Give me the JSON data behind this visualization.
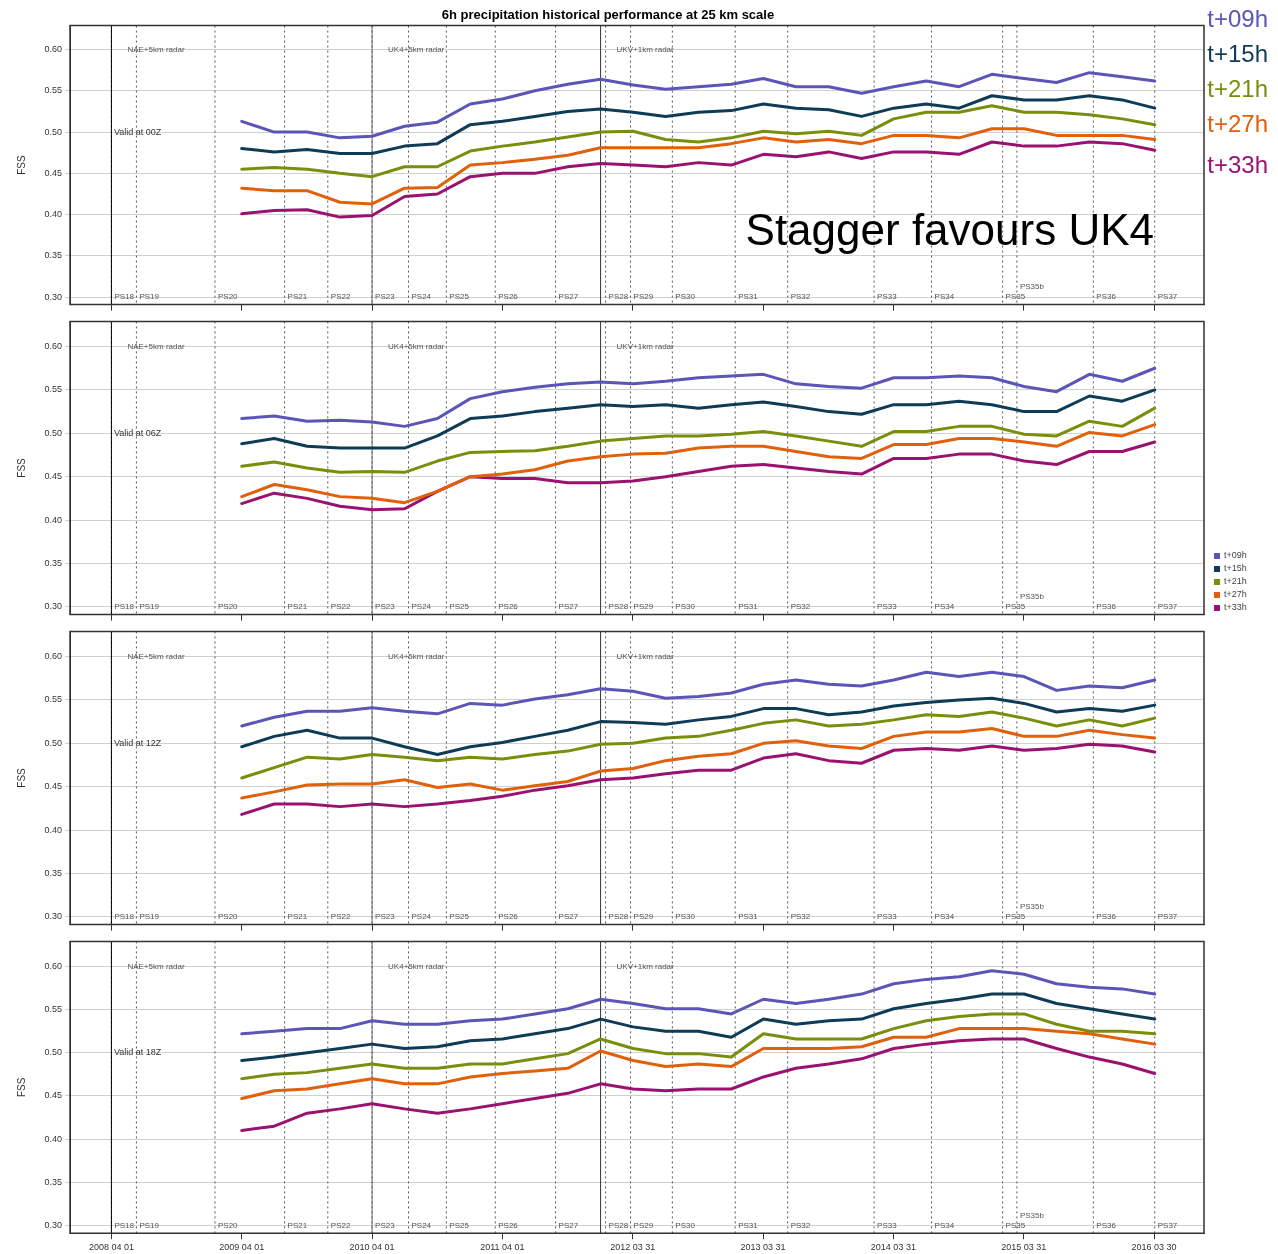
{
  "chart_data": [
    {
      "type": "line",
      "title": "6h precipitation historical performance at 25 km scale",
      "ylabel": "FSS",
      "grid": "y",
      "legend": "top right",
      "tick_labels": "y",
      "marker": "none",
      "line_style": "solid",
      "x": [
        "2009-04",
        "2009-07",
        "2009-10",
        "2010-01",
        "2010-04",
        "2010-07",
        "2010-10",
        "2011-01",
        "2011-04",
        "2011-07",
        "2011-10",
        "2012-01",
        "2012-04",
        "2012-07",
        "2012-10",
        "2013-01",
        "2013-04",
        "2013-07",
        "2013-10",
        "2014-01",
        "2014-04",
        "2014-07",
        "2014-10",
        "2015-01",
        "2015-04",
        "2015-07",
        "2015-10",
        "2016-01",
        "2016-04"
      ],
      "xlim": [
        "2007-12-07",
        "2016-08-17"
      ],
      "xticks": [
        {
          "value": "2008-04-01",
          "label": null
        },
        {
          "value": "2009-04-01",
          "label": null
        },
        {
          "value": "2010-04-01",
          "label": null
        },
        {
          "value": "2011-04-01",
          "label": null
        },
        {
          "value": "2012-03-31",
          "label": null
        },
        {
          "value": "2013-03-31",
          "label": null
        },
        {
          "value": "2014-03-31",
          "label": null
        },
        {
          "value": "2015-03-31",
          "label": null
        },
        {
          "value": "2016-03-30",
          "label": null
        }
      ],
      "ylim": [
        0.291,
        0.629
      ],
      "yticks": [
        {
          "value": 0.3,
          "label": "0.30"
        },
        {
          "value": 0.35,
          "label": "0.35"
        },
        {
          "value": 0.4,
          "label": "0.40"
        },
        {
          "value": 0.45,
          "label": "0.45"
        },
        {
          "value": 0.5,
          "label": "0.50"
        },
        {
          "value": 0.55,
          "label": "0.55"
        },
        {
          "value": 0.6,
          "label": "0.60"
        }
      ],
      "series": [
        {
          "name": "t+09h",
          "color": "#5b55b8",
          "values": [
            0.513,
            0.5,
            0.5,
            0.493,
            0.495,
            0.507,
            0.512,
            0.534,
            0.54,
            0.55,
            0.558,
            0.564,
            0.557,
            0.552,
            0.555,
            0.558,
            0.565,
            0.555,
            0.555,
            0.547,
            0.555,
            0.562,
            0.555,
            0.57,
            0.565,
            0.56,
            0.572,
            0.567,
            0.562
          ]
        },
        {
          "name": "t+15h",
          "color": "#0e3b55",
          "values": [
            0.48,
            0.476,
            0.479,
            0.474,
            0.474,
            0.483,
            0.486,
            0.509,
            0.513,
            0.519,
            0.525,
            0.528,
            0.524,
            0.519,
            0.524,
            0.526,
            0.534,
            0.529,
            0.527,
            0.519,
            0.529,
            0.534,
            0.529,
            0.544,
            0.539,
            0.539,
            0.544,
            0.539,
            0.529
          ]
        },
        {
          "name": "t+21h",
          "color": "#7b8d0c",
          "values": [
            0.455,
            0.457,
            0.455,
            0.45,
            0.446,
            0.458,
            0.458,
            0.477,
            0.483,
            0.488,
            0.494,
            0.5,
            0.501,
            0.491,
            0.488,
            0.493,
            0.501,
            0.498,
            0.501,
            0.496,
            0.516,
            0.524,
            0.524,
            0.532,
            0.524,
            0.524,
            0.521,
            0.516,
            0.509
          ]
        },
        {
          "name": "t+27h",
          "color": "#e0600c",
          "values": [
            0.432,
            0.429,
            0.429,
            0.415,
            0.413,
            0.432,
            0.433,
            0.46,
            0.463,
            0.467,
            0.472,
            0.481,
            0.481,
            0.481,
            0.481,
            0.486,
            0.493,
            0.488,
            0.491,
            0.486,
            0.496,
            0.496,
            0.493,
            0.504,
            0.504,
            0.496,
            0.496,
            0.496,
            0.491
          ]
        },
        {
          "name": "t+33h",
          "color": "#9a1270",
          "values": [
            0.401,
            0.405,
            0.406,
            0.397,
            0.399,
            0.422,
            0.425,
            0.446,
            0.45,
            0.45,
            0.458,
            0.462,
            0.46,
            0.458,
            0.463,
            0.46,
            0.473,
            0.47,
            0.476,
            0.468,
            0.476,
            0.476,
            0.473,
            0.488,
            0.483,
            0.483,
            0.488,
            0.486,
            0.478
          ]
        }
      ],
      "ref_lines": [
        {
          "axis": "x",
          "value": "2008-04-01",
          "label": "NAE+5km radar",
          "line_style": "solid",
          "color": "#000000"
        },
        {
          "axis": "x",
          "value": "2008-04-01",
          "label": "PS18",
          "line_style": "dotted",
          "color": "#555555"
        },
        {
          "axis": "x",
          "value": "2008-06-10",
          "label": "PS19",
          "line_style": "dotted",
          "color": "#555555"
        },
        {
          "axis": "x",
          "value": "2009-01-16",
          "label": "PS20",
          "line_style": "dotted",
          "color": "#555555"
        },
        {
          "axis": "x",
          "value": "2009-07-30",
          "label": "PS21",
          "line_style": "dotted",
          "color": "#555555"
        },
        {
          "axis": "x",
          "value": "2009-11-28",
          "label": "PS22",
          "line_style": "dotted",
          "color": "#555555"
        },
        {
          "axis": "x",
          "value": "2010-04-01",
          "label": "UK4+5km radar",
          "line_style": "solid",
          "color": "#666666"
        },
        {
          "axis": "x",
          "value": "2010-04-01",
          "label": "PS23",
          "line_style": "dotted",
          "color": "#555555"
        },
        {
          "axis": "x",
          "value": "2010-07-12",
          "label": "PS24",
          "line_style": "dotted",
          "color": "#555555"
        },
        {
          "axis": "x",
          "value": "2010-10-26",
          "label": "PS25",
          "line_style": "dotted",
          "color": "#555555"
        },
        {
          "axis": "x",
          "value": "2011-03-12",
          "label": "PS26",
          "line_style": "dotted",
          "color": "#555555"
        },
        {
          "axis": "x",
          "value": "2011-08-28",
          "label": "PS27",
          "line_style": "dotted",
          "color": "#555555"
        },
        {
          "axis": "x",
          "value": "2012-01-01",
          "label": "UKV+1km radar",
          "line_style": "solid",
          "color": "#333333"
        },
        {
          "axis": "x",
          "value": "2012-01-15",
          "label": "PS28",
          "line_style": "dotted",
          "color": "#555555"
        },
        {
          "axis": "x",
          "value": "2012-03-25",
          "label": "PS29",
          "line_style": "dotted",
          "color": "#555555"
        },
        {
          "axis": "x",
          "value": "2012-07-20",
          "label": "PS30",
          "line_style": "dotted",
          "color": "#555555"
        },
        {
          "axis": "x",
          "value": "2013-01-12",
          "label": "PS31",
          "line_style": "dotted",
          "color": "#555555"
        },
        {
          "axis": "x",
          "value": "2013-06-08",
          "label": "PS32",
          "line_style": "dotted",
          "color": "#555555"
        },
        {
          "axis": "x",
          "value": "2014-02-05",
          "label": "PS33",
          "line_style": "dotted",
          "color": "#555555"
        },
        {
          "axis": "x",
          "value": "2014-07-16",
          "label": "PS34",
          "line_style": "dotted",
          "color": "#555555"
        },
        {
          "axis": "x",
          "value": "2015-01-31",
          "label": "PS35",
          "line_style": "dotted",
          "color": "#555555"
        },
        {
          "axis": "x",
          "value": "2015-03-12",
          "label": "PS35b",
          "line_style": "dotted",
          "color": "#555555"
        },
        {
          "axis": "x",
          "value": "2015-10-12",
          "label": "PS36",
          "line_style": "dotted",
          "color": "#555555"
        },
        {
          "axis": "x",
          "value": "2016-04-01",
          "label": "PS37",
          "line_style": "dotted",
          "color": "#555555"
        }
      ],
      "annotations": [
        {
          "text": "Valid at 00Z",
          "x": "2008-04-08",
          "y": 0.5
        },
        "Stagger favours UK4"
      ]
    },
    {
      "type": "line",
      "ylabel": "FSS",
      "grid": "y",
      "legend": "bottom right",
      "tick_labels": "y",
      "marker": "none",
      "line_style": "solid",
      "x": [
        "2009-04",
        "2009-07",
        "2009-10",
        "2010-01",
        "2010-04",
        "2010-07",
        "2010-10",
        "2011-01",
        "2011-04",
        "2011-07",
        "2011-10",
        "2012-01",
        "2012-04",
        "2012-07",
        "2012-10",
        "2013-01",
        "2013-04",
        "2013-07",
        "2013-10",
        "2014-01",
        "2014-04",
        "2014-07",
        "2014-10",
        "2015-01",
        "2015-04",
        "2015-07",
        "2015-10",
        "2016-01",
        "2016-04"
      ],
      "xlim": [
        "2007-12-07",
        "2016-08-17"
      ],
      "xticks": [
        {
          "value": "2008-04-01",
          "label": null
        },
        {
          "value": "2009-04-01",
          "label": null
        },
        {
          "value": "2010-04-01",
          "label": null
        },
        {
          "value": "2011-04-01",
          "label": null
        },
        {
          "value": "2012-03-31",
          "label": null
        },
        {
          "value": "2013-03-31",
          "label": null
        },
        {
          "value": "2014-03-31",
          "label": null
        },
        {
          "value": "2015-03-31",
          "label": null
        },
        {
          "value": "2016-03-30",
          "label": null
        }
      ],
      "ylim": [
        0.291,
        0.629
      ],
      "yticks": [
        {
          "value": 0.3,
          "label": "0.30"
        },
        {
          "value": 0.35,
          "label": "0.35"
        },
        {
          "value": 0.4,
          "label": "0.40"
        },
        {
          "value": 0.45,
          "label": "0.45"
        },
        {
          "value": 0.5,
          "label": "0.50"
        },
        {
          "value": 0.55,
          "label": "0.55"
        },
        {
          "value": 0.6,
          "label": "0.60"
        }
      ],
      "series": [
        {
          "name": "t+09h",
          "color": "#5b55b8",
          "values": [
            0.517,
            0.52,
            0.514,
            0.515,
            0.513,
            0.508,
            0.517,
            0.54,
            0.548,
            0.553,
            0.557,
            0.559,
            0.557,
            0.56,
            0.564,
            0.566,
            0.568,
            0.557,
            0.554,
            0.552,
            0.564,
            0.564,
            0.566,
            0.564,
            0.554,
            0.548,
            0.568,
            0.56,
            0.575
          ]
        },
        {
          "name": "t+15h",
          "color": "#0e3b55",
          "values": [
            0.488,
            0.494,
            0.485,
            0.483,
            0.483,
            0.483,
            0.497,
            0.517,
            0.52,
            0.525,
            0.529,
            0.533,
            0.531,
            0.533,
            0.529,
            0.533,
            0.536,
            0.531,
            0.525,
            0.522,
            0.533,
            0.533,
            0.537,
            0.533,
            0.525,
            0.525,
            0.543,
            0.537,
            0.55
          ]
        },
        {
          "name": "t+21h",
          "color": "#7b8d0c",
          "values": [
            0.462,
            0.467,
            0.46,
            0.455,
            0.456,
            0.455,
            0.468,
            0.478,
            0.479,
            0.48,
            0.485,
            0.491,
            0.494,
            0.497,
            0.497,
            0.499,
            0.502,
            0.497,
            0.491,
            0.485,
            0.502,
            0.502,
            0.508,
            0.508,
            0.499,
            0.497,
            0.514,
            0.508,
            0.529
          ]
        },
        {
          "name": "t+27h",
          "color": "#e0600c",
          "values": [
            0.427,
            0.441,
            0.435,
            0.427,
            0.425,
            0.42,
            0.433,
            0.45,
            0.453,
            0.458,
            0.468,
            0.473,
            0.476,
            0.477,
            0.483,
            0.485,
            0.485,
            0.479,
            0.473,
            0.471,
            0.487,
            0.487,
            0.494,
            0.494,
            0.49,
            0.485,
            0.501,
            0.497,
            0.51
          ]
        },
        {
          "name": "t+33h",
          "color": "#9a1270",
          "values": [
            0.419,
            0.431,
            0.425,
            0.416,
            0.412,
            0.413,
            0.433,
            0.45,
            0.448,
            0.448,
            0.443,
            0.443,
            0.445,
            0.45,
            0.456,
            0.462,
            0.464,
            0.46,
            0.456,
            0.453,
            0.471,
            0.471,
            0.476,
            0.476,
            0.468,
            0.464,
            0.479,
            0.479,
            0.49
          ]
        }
      ],
      "ref_lines": [
        {
          "axis": "x",
          "value": "2008-04-01",
          "label": "NAE+5km radar",
          "line_style": "solid",
          "color": "#000000"
        },
        {
          "axis": "x",
          "value": "2008-04-01",
          "label": "PS18",
          "line_style": "dotted",
          "color": "#555555"
        },
        {
          "axis": "x",
          "value": "2008-06-10",
          "label": "PS19",
          "line_style": "dotted",
          "color": "#555555"
        },
        {
          "axis": "x",
          "value": "2009-01-16",
          "label": "PS20",
          "line_style": "dotted",
          "color": "#555555"
        },
        {
          "axis": "x",
          "value": "2009-07-30",
          "label": "PS21",
          "line_style": "dotted",
          "color": "#555555"
        },
        {
          "axis": "x",
          "value": "2009-11-28",
          "label": "PS22",
          "line_style": "dotted",
          "color": "#555555"
        },
        {
          "axis": "x",
          "value": "2010-04-01",
          "label": "UK4+5km radar",
          "line_style": "solid",
          "color": "#666666"
        },
        {
          "axis": "x",
          "value": "2010-04-01",
          "label": "PS23",
          "line_style": "dotted",
          "color": "#555555"
        },
        {
          "axis": "x",
          "value": "2010-07-12",
          "label": "PS24",
          "line_style": "dotted",
          "color": "#555555"
        },
        {
          "axis": "x",
          "value": "2010-10-26",
          "label": "PS25",
          "line_style": "dotted",
          "color": "#555555"
        },
        {
          "axis": "x",
          "value": "2011-03-12",
          "label": "PS26",
          "line_style": "dotted",
          "color": "#555555"
        },
        {
          "axis": "x",
          "value": "2011-08-28",
          "label": "PS27",
          "line_style": "dotted",
          "color": "#555555"
        },
        {
          "axis": "x",
          "value": "2012-01-01",
          "label": "UKV+1km radar",
          "line_style": "solid",
          "color": "#333333"
        },
        {
          "axis": "x",
          "value": "2012-01-15",
          "label": "PS28",
          "line_style": "dotted",
          "color": "#555555"
        },
        {
          "axis": "x",
          "value": "2012-03-25",
          "label": "PS29",
          "line_style": "dotted",
          "color": "#555555"
        },
        {
          "axis": "x",
          "value": "2012-07-20",
          "label": "PS30",
          "line_style": "dotted",
          "color": "#555555"
        },
        {
          "axis": "x",
          "value": "2013-01-12",
          "label": "PS31",
          "line_style": "dotted",
          "color": "#555555"
        },
        {
          "axis": "x",
          "value": "2013-06-08",
          "label": "PS32",
          "line_style": "dotted",
          "color": "#555555"
        },
        {
          "axis": "x",
          "value": "2014-02-05",
          "label": "PS33",
          "line_style": "dotted",
          "color": "#555555"
        },
        {
          "axis": "x",
          "value": "2014-07-16",
          "label": "PS34",
          "line_style": "dotted",
          "color": "#555555"
        },
        {
          "axis": "x",
          "value": "2015-01-31",
          "label": "PS35",
          "line_style": "dotted",
          "color": "#555555"
        },
        {
          "axis": "x",
          "value": "2015-03-12",
          "label": "PS35b",
          "line_style": "dotted",
          "color": "#555555"
        },
        {
          "axis": "x",
          "value": "2015-10-12",
          "label": "PS36",
          "line_style": "dotted",
          "color": "#555555"
        },
        {
          "axis": "x",
          "value": "2016-04-01",
          "label": "PS37",
          "line_style": "dotted",
          "color": "#555555"
        }
      ],
      "annotations": [
        {
          "text": "Valid at 06Z",
          "x": "2008-04-08",
          "y": 0.5
        }
      ]
    },
    {
      "type": "line",
      "ylabel": "FSS",
      "grid": "y",
      "tick_labels": "y",
      "marker": "none",
      "line_style": "solid",
      "x": [
        "2009-04",
        "2009-07",
        "2009-10",
        "2010-01",
        "2010-04",
        "2010-07",
        "2010-10",
        "2011-01",
        "2011-04",
        "2011-07",
        "2011-10",
        "2012-01",
        "2012-04",
        "2012-07",
        "2012-10",
        "2013-01",
        "2013-04",
        "2013-07",
        "2013-10",
        "2014-01",
        "2014-04",
        "2014-07",
        "2014-10",
        "2015-01",
        "2015-04",
        "2015-07",
        "2015-10",
        "2016-01",
        "2016-04"
      ],
      "xlim": [
        "2007-12-07",
        "2016-08-17"
      ],
      "xticks": [
        {
          "value": "2008-04-01",
          "label": null
        },
        {
          "value": "2009-04-01",
          "label": null
        },
        {
          "value": "2010-04-01",
          "label": null
        },
        {
          "value": "2011-04-01",
          "label": null
        },
        {
          "value": "2012-03-31",
          "label": null
        },
        {
          "value": "2013-03-31",
          "label": null
        },
        {
          "value": "2014-03-31",
          "label": null
        },
        {
          "value": "2015-03-31",
          "label": null
        },
        {
          "value": "2016-03-30",
          "label": null
        }
      ],
      "ylim": [
        0.291,
        0.629
      ],
      "yticks": [
        {
          "value": 0.3,
          "label": "0.30"
        },
        {
          "value": 0.35,
          "label": "0.35"
        },
        {
          "value": 0.4,
          "label": "0.40"
        },
        {
          "value": 0.45,
          "label": "0.45"
        },
        {
          "value": 0.5,
          "label": "0.50"
        },
        {
          "value": 0.55,
          "label": "0.55"
        },
        {
          "value": 0.6,
          "label": "0.60"
        }
      ],
      "series": [
        {
          "color": "#5b55b8",
          "values": [
            0.52,
            0.53,
            0.537,
            0.537,
            0.541,
            0.537,
            0.534,
            0.546,
            0.544,
            0.551,
            0.556,
            0.563,
            0.56,
            0.552,
            0.554,
            0.558,
            0.568,
            0.573,
            0.568,
            0.566,
            0.573,
            0.582,
            0.577,
            0.582,
            0.577,
            0.561,
            0.566,
            0.564,
            0.573
          ]
        },
        {
          "color": "#0e3b55",
          "values": [
            0.496,
            0.508,
            0.515,
            0.506,
            0.506,
            0.496,
            0.487,
            0.496,
            0.501,
            0.508,
            0.515,
            0.525,
            0.524,
            0.522,
            0.527,
            0.531,
            0.54,
            0.54,
            0.533,
            0.536,
            0.543,
            0.547,
            0.55,
            0.552,
            0.546,
            0.536,
            0.54,
            0.537,
            0.544
          ]
        },
        {
          "color": "#7b8d0c",
          "values": [
            0.46,
            0.472,
            0.484,
            0.482,
            0.487,
            0.484,
            0.48,
            0.484,
            0.482,
            0.487,
            0.491,
            0.499,
            0.5,
            0.506,
            0.508,
            0.515,
            0.523,
            0.527,
            0.52,
            0.522,
            0.527,
            0.533,
            0.531,
            0.536,
            0.529,
            0.52,
            0.527,
            0.52,
            0.529
          ]
        },
        {
          "color": "#e0600c",
          "values": [
            0.437,
            0.444,
            0.452,
            0.453,
            0.453,
            0.458,
            0.449,
            0.453,
            0.446,
            0.451,
            0.456,
            0.468,
            0.471,
            0.48,
            0.485,
            0.488,
            0.5,
            0.503,
            0.497,
            0.494,
            0.508,
            0.513,
            0.513,
            0.517,
            0.508,
            0.508,
            0.515,
            0.51,
            0.506
          ]
        },
        {
          "color": "#9a1270",
          "values": [
            0.418,
            0.43,
            0.43,
            0.427,
            0.43,
            0.427,
            0.43,
            0.434,
            0.439,
            0.446,
            0.451,
            0.458,
            0.46,
            0.465,
            0.469,
            0.469,
            0.483,
            0.488,
            0.48,
            0.477,
            0.492,
            0.494,
            0.492,
            0.497,
            0.492,
            0.494,
            0.499,
            0.497,
            0.49
          ]
        }
      ],
      "ref_lines": [
        {
          "axis": "x",
          "value": "2008-04-01",
          "label": "NAE+5km radar",
          "line_style": "solid",
          "color": "#000000"
        },
        {
          "axis": "x",
          "value": "2008-04-01",
          "label": "PS18",
          "line_style": "dotted",
          "color": "#555555"
        },
        {
          "axis": "x",
          "value": "2008-06-10",
          "label": "PS19",
          "line_style": "dotted",
          "color": "#555555"
        },
        {
          "axis": "x",
          "value": "2009-01-16",
          "label": "PS20",
          "line_style": "dotted",
          "color": "#555555"
        },
        {
          "axis": "x",
          "value": "2009-07-30",
          "label": "PS21",
          "line_style": "dotted",
          "color": "#555555"
        },
        {
          "axis": "x",
          "value": "2009-11-28",
          "label": "PS22",
          "line_style": "dotted",
          "color": "#555555"
        },
        {
          "axis": "x",
          "value": "2010-04-01",
          "label": "UK4+5km radar",
          "line_style": "solid",
          "color": "#666666"
        },
        {
          "axis": "x",
          "value": "2010-04-01",
          "label": "PS23",
          "line_style": "dotted",
          "color": "#555555"
        },
        {
          "axis": "x",
          "value": "2010-07-12",
          "label": "PS24",
          "line_style": "dotted",
          "color": "#555555"
        },
        {
          "axis": "x",
          "value": "2010-10-26",
          "label": "PS25",
          "line_style": "dotted",
          "color": "#555555"
        },
        {
          "axis": "x",
          "value": "2011-03-12",
          "label": "PS26",
          "line_style": "dotted",
          "color": "#555555"
        },
        {
          "axis": "x",
          "value": "2011-08-28",
          "label": "PS27",
          "line_style": "dotted",
          "color": "#555555"
        },
        {
          "axis": "x",
          "value": "2012-01-01",
          "label": "UKV+1km radar",
          "line_style": "solid",
          "color": "#333333"
        },
        {
          "axis": "x",
          "value": "2012-01-15",
          "label": "PS28",
          "line_style": "dotted",
          "color": "#555555"
        },
        {
          "axis": "x",
          "value": "2012-03-25",
          "label": "PS29",
          "line_style": "dotted",
          "color": "#555555"
        },
        {
          "axis": "x",
          "value": "2012-07-20",
          "label": "PS30",
          "line_style": "dotted",
          "color": "#555555"
        },
        {
          "axis": "x",
          "value": "2013-01-12",
          "label": "PS31",
          "line_style": "dotted",
          "color": "#555555"
        },
        {
          "axis": "x",
          "value": "2013-06-08",
          "label": "PS32",
          "line_style": "dotted",
          "color": "#555555"
        },
        {
          "axis": "x",
          "value": "2014-02-05",
          "label": "PS33",
          "line_style": "dotted",
          "color": "#555555"
        },
        {
          "axis": "x",
          "value": "2014-07-16",
          "label": "PS34",
          "line_style": "dotted",
          "color": "#555555"
        },
        {
          "axis": "x",
          "value": "2015-01-31",
          "label": "PS35",
          "line_style": "dotted",
          "color": "#555555"
        },
        {
          "axis": "x",
          "value": "2015-03-12",
          "label": "PS35b",
          "line_style": "dotted",
          "color": "#555555"
        },
        {
          "axis": "x",
          "value": "2015-10-12",
          "label": "PS36",
          "line_style": "dotted",
          "color": "#555555"
        },
        {
          "axis": "x",
          "value": "2016-04-01",
          "label": "PS37",
          "line_style": "dotted",
          "color": "#555555"
        }
      ],
      "annotations": [
        {
          "text": "Valid at 12Z",
          "x": "2008-04-08",
          "y": 0.5
        }
      ]
    },
    {
      "type": "line",
      "ylabel": "FSS",
      "grid": "y",
      "marker": "none",
      "line_style": "solid",
      "x": [
        "2009-04",
        "2009-07",
        "2009-10",
        "2010-01",
        "2010-04",
        "2010-07",
        "2010-10",
        "2011-01",
        "2011-04",
        "2011-07",
        "2011-10",
        "2012-01",
        "2012-04",
        "2012-07",
        "2012-10",
        "2013-01",
        "2013-04",
        "2013-07",
        "2013-10",
        "2014-01",
        "2014-04",
        "2014-07",
        "2014-10",
        "2015-01",
        "2015-04",
        "2015-07",
        "2015-10",
        "2016-01",
        "2016-04"
      ],
      "xlim": [
        "2007-12-07",
        "2016-08-17"
      ],
      "xticks": [
        {
          "value": "2008-04-01",
          "label": "2008 04 01"
        },
        {
          "value": "2009-04-01",
          "label": "2009 04 01"
        },
        {
          "value": "2010-04-01",
          "label": "2010 04 01"
        },
        {
          "value": "2011-04-01",
          "label": "2011 04 01"
        },
        {
          "value": "2012-03-31",
          "label": "2012 03 31"
        },
        {
          "value": "2013-03-31",
          "label": "2013 03 31"
        },
        {
          "value": "2014-03-31",
          "label": "2014 03 31"
        },
        {
          "value": "2015-03-31",
          "label": "2015 03 31"
        },
        {
          "value": "2016-03-30",
          "label": "2016 03 30"
        }
      ],
      "ylim": [
        0.291,
        0.629
      ],
      "yticks": [
        {
          "value": 0.3,
          "label": "0.30"
        },
        {
          "value": 0.35,
          "label": "0.35"
        },
        {
          "value": 0.4,
          "label": "0.40"
        },
        {
          "value": 0.45,
          "label": "0.45"
        },
        {
          "value": 0.5,
          "label": "0.50"
        },
        {
          "value": 0.55,
          "label": "0.55"
        },
        {
          "value": 0.6,
          "label": "0.60"
        }
      ],
      "series": [
        {
          "color": "#5b55b8",
          "values": [
            0.522,
            0.525,
            0.528,
            0.528,
            0.537,
            0.533,
            0.533,
            0.537,
            0.539,
            0.545,
            0.551,
            0.562,
            0.557,
            0.551,
            0.551,
            0.545,
            0.562,
            0.557,
            0.562,
            0.568,
            0.58,
            0.585,
            0.588,
            0.595,
            0.591,
            0.58,
            0.576,
            0.574,
            0.568
          ]
        },
        {
          "color": "#0e3b55",
          "values": [
            0.491,
            0.495,
            0.5,
            0.505,
            0.51,
            0.505,
            0.507,
            0.514,
            0.516,
            0.522,
            0.528,
            0.539,
            0.53,
            0.525,
            0.525,
            0.518,
            0.539,
            0.533,
            0.537,
            0.539,
            0.551,
            0.557,
            0.562,
            0.568,
            0.568,
            0.557,
            0.551,
            0.545,
            0.539
          ]
        },
        {
          "color": "#7b8d0c",
          "values": [
            0.47,
            0.475,
            0.477,
            0.482,
            0.487,
            0.482,
            0.482,
            0.487,
            0.487,
            0.493,
            0.499,
            0.516,
            0.505,
            0.499,
            0.499,
            0.495,
            0.522,
            0.516,
            0.516,
            0.516,
            0.528,
            0.537,
            0.542,
            0.545,
            0.545,
            0.533,
            0.525,
            0.525,
            0.522
          ]
        },
        {
          "color": "#e0600c",
          "values": [
            0.447,
            0.456,
            0.458,
            0.464,
            0.47,
            0.464,
            0.464,
            0.472,
            0.476,
            0.479,
            0.482,
            0.502,
            0.491,
            0.484,
            0.487,
            0.484,
            0.505,
            0.505,
            0.505,
            0.507,
            0.518,
            0.518,
            0.528,
            0.528,
            0.528,
            0.525,
            0.522,
            0.516,
            0.51
          ]
        },
        {
          "color": "#9a1270",
          "values": [
            0.41,
            0.415,
            0.43,
            0.435,
            0.441,
            0.435,
            0.43,
            0.435,
            0.441,
            0.447,
            0.453,
            0.464,
            0.458,
            0.456,
            0.458,
            0.458,
            0.472,
            0.482,
            0.487,
            0.493,
            0.505,
            0.51,
            0.514,
            0.516,
            0.516,
            0.505,
            0.495,
            0.487,
            0.476
          ]
        }
      ],
      "ref_lines": [
        {
          "axis": "x",
          "value": "2008-04-01",
          "label": "NAE+5km radar",
          "line_style": "solid",
          "color": "#000000"
        },
        {
          "axis": "x",
          "value": "2008-04-01",
          "label": "PS18",
          "line_style": "dotted",
          "color": "#555555"
        },
        {
          "axis": "x",
          "value": "2008-06-10",
          "label": "PS19",
          "line_style": "dotted",
          "color": "#555555"
        },
        {
          "axis": "x",
          "value": "2009-01-16",
          "label": "PS20",
          "line_style": "dotted",
          "color": "#555555"
        },
        {
          "axis": "x",
          "value": "2009-07-30",
          "label": "PS21",
          "line_style": "dotted",
          "color": "#555555"
        },
        {
          "axis": "x",
          "value": "2009-11-28",
          "label": "PS22",
          "line_style": "dotted",
          "color": "#555555"
        },
        {
          "axis": "x",
          "value": "2010-04-01",
          "label": "UK4+5km radar",
          "line_style": "solid",
          "color": "#666666"
        },
        {
          "axis": "x",
          "value": "2010-04-01",
          "label": "PS23",
          "line_style": "dotted",
          "color": "#555555"
        },
        {
          "axis": "x",
          "value": "2010-07-12",
          "label": "PS24",
          "line_style": "dotted",
          "color": "#555555"
        },
        {
          "axis": "x",
          "value": "2010-10-26",
          "label": "PS25",
          "line_style": "dotted",
          "color": "#555555"
        },
        {
          "axis": "x",
          "value": "2011-03-12",
          "label": "PS26",
          "line_style": "dotted",
          "color": "#555555"
        },
        {
          "axis": "x",
          "value": "2011-08-28",
          "label": "PS27",
          "line_style": "dotted",
          "color": "#555555"
        },
        {
          "axis": "x",
          "value": "2012-01-01",
          "label": "UKV+1km radar",
          "line_style": "solid",
          "color": "#333333"
        },
        {
          "axis": "x",
          "value": "2012-01-15",
          "label": "PS28",
          "line_style": "dotted",
          "color": "#555555"
        },
        {
          "axis": "x",
          "value": "2012-03-25",
          "label": "PS29",
          "line_style": "dotted",
          "color": "#555555"
        },
        {
          "axis": "x",
          "value": "2012-07-20",
          "label": "PS30",
          "line_style": "dotted",
          "color": "#555555"
        },
        {
          "axis": "x",
          "value": "2013-01-12",
          "label": "PS31",
          "line_style": "dotted",
          "color": "#555555"
        },
        {
          "axis": "x",
          "value": "2013-06-08",
          "label": "PS32",
          "line_style": "dotted",
          "color": "#555555"
        },
        {
          "axis": "x",
          "value": "2014-02-05",
          "label": "PS33",
          "line_style": "dotted",
          "color": "#555555"
        },
        {
          "axis": "x",
          "value": "2014-07-16",
          "label": "PS34",
          "line_style": "dotted",
          "color": "#555555"
        },
        {
          "axis": "x",
          "value": "2015-01-31",
          "label": "PS35",
          "line_style": "dotted",
          "color": "#555555"
        },
        {
          "axis": "x",
          "value": "2015-03-12",
          "label": "PS35b",
          "line_style": "dotted",
          "color": "#555555"
        },
        {
          "axis": "x",
          "value": "2015-10-12",
          "label": "PS36",
          "line_style": "dotted",
          "color": "#555555"
        },
        {
          "axis": "x",
          "value": "2016-04-01",
          "label": "PS37",
          "line_style": "dotted",
          "color": "#555555"
        }
      ],
      "annotations": [
        {
          "text": "Valid at 18Z",
          "x": "2008-04-08",
          "y": 0.5
        }
      ]
    }
  ]
}
